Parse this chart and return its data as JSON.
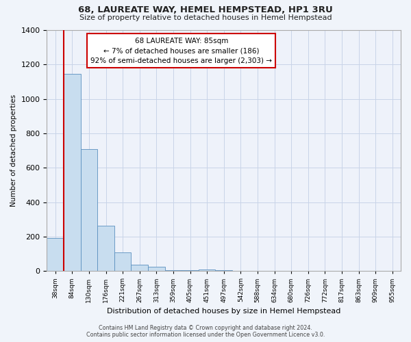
{
  "title": "68, LAUREATE WAY, HEMEL HEMPSTEAD, HP1 3RU",
  "subtitle": "Size of property relative to detached houses in Hemel Hempstead",
  "xlabel": "Distribution of detached houses by size in Hemel Hempstead",
  "ylabel": "Number of detached properties",
  "bar_values": [
    190,
    1145,
    710,
    265,
    110,
    35,
    25,
    5,
    5,
    10,
    5,
    0,
    0,
    0,
    0,
    0,
    0,
    0,
    0,
    0,
    0
  ],
  "bar_labels": [
    "38sqm",
    "84sqm",
    "130sqm",
    "176sqm",
    "221sqm",
    "267sqm",
    "313sqm",
    "359sqm",
    "405sqm",
    "451sqm",
    "497sqm",
    "542sqm",
    "588sqm",
    "634sqm",
    "680sqm",
    "726sqm",
    "772sqm",
    "817sqm",
    "863sqm",
    "909sqm",
    "955sqm"
  ],
  "bar_color": "#c8ddef",
  "bar_edge_color": "#5a8fbf",
  "vline_color": "#cc0000",
  "ylim": [
    0,
    1400
  ],
  "yticks": [
    0,
    200,
    400,
    600,
    800,
    1000,
    1200,
    1400
  ],
  "annotation_title": "68 LAUREATE WAY: 85sqm",
  "annotation_line1": "← 7% of detached houses are smaller (186)",
  "annotation_line2": "92% of semi-detached houses are larger (2,303) →",
  "annotation_box_color": "#ffffff",
  "annotation_box_edge": "#cc0000",
  "footer_line1": "Contains HM Land Registry data © Crown copyright and database right 2024.",
  "footer_line2": "Contains public sector information licensed under the Open Government Licence v3.0.",
  "background_color": "#f0f4fa",
  "plot_background": "#eef2fa",
  "grid_color": "#c8d4e8"
}
